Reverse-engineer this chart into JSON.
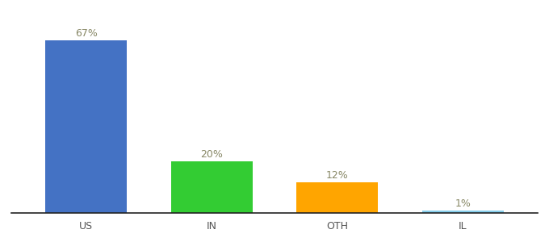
{
  "categories": [
    "US",
    "IN",
    "OTH",
    "IL"
  ],
  "values": [
    67,
    20,
    12,
    1
  ],
  "bar_colors": [
    "#4472C4",
    "#33CC33",
    "#FFA500",
    "#87CEEB"
  ],
  "labels": [
    "67%",
    "20%",
    "12%",
    "1%"
  ],
  "ylim": [
    0,
    75
  ],
  "background_color": "#ffffff",
  "label_fontsize": 9,
  "tick_fontsize": 9,
  "bar_width": 0.65,
  "label_color": "#888866",
  "tick_color": "#555555"
}
